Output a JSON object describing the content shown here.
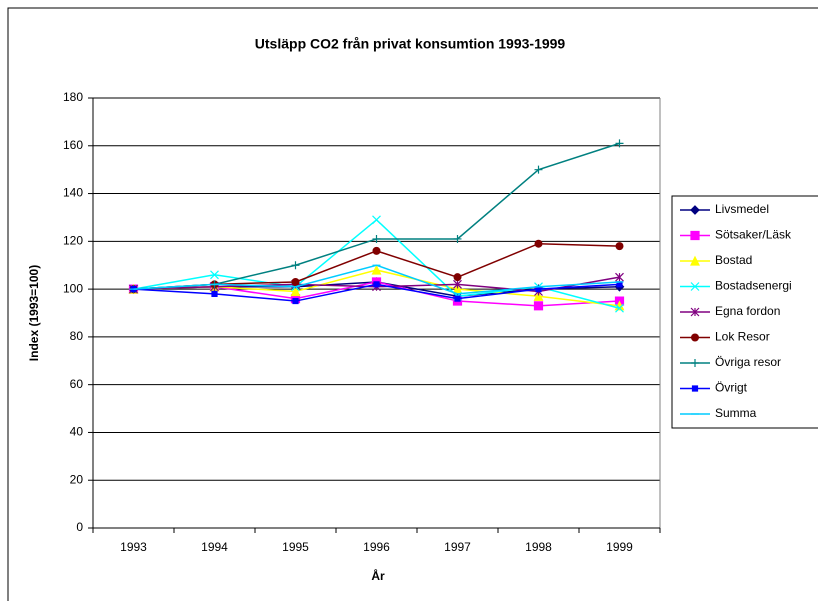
{
  "chart_data": {
    "type": "line",
    "title": "Utsläpp CO2 från privat konsumtion 1993-1999",
    "x_label": "År",
    "y_label": "Index (1993=100)",
    "categories": [
      "1993",
      "1994",
      "1995",
      "1996",
      "1997",
      "1998",
      "1999"
    ],
    "ylim": [
      0,
      180
    ],
    "yticks": [
      0,
      20,
      40,
      60,
      80,
      100,
      120,
      140,
      160,
      180
    ],
    "grid": true,
    "legend": "right",
    "series": [
      {
        "name": "Livsmedel",
        "color": "#000080",
        "marker": "diamond",
        "values": [
          100,
          101,
          101,
          103,
          97,
          100,
          101
        ]
      },
      {
        "name": "Sötsaker/Läsk",
        "color": "#ff00ff",
        "marker": "square",
        "values": [
          100,
          101,
          96,
          103,
          95,
          93,
          95
        ]
      },
      {
        "name": "Bostad",
        "color": "#ffff00",
        "marker": "triangle",
        "values": [
          100,
          101,
          99,
          108,
          100,
          97,
          93
        ]
      },
      {
        "name": "Bostadsenergi",
        "color": "#00ffff",
        "marker": "x",
        "values": [
          100,
          106,
          101,
          129,
          97,
          101,
          92
        ]
      },
      {
        "name": "Egna fordon",
        "color": "#800080",
        "marker": "star",
        "values": [
          100,
          101,
          102,
          101,
          102,
          99,
          105
        ]
      },
      {
        "name": "Lok Resor",
        "color": "#800000",
        "marker": "circle",
        "values": [
          100,
          102,
          103,
          116,
          105,
          119,
          118
        ]
      },
      {
        "name": "Övriga resor",
        "color": "#008080",
        "marker": "plus",
        "values": [
          100,
          102,
          110,
          121,
          121,
          150,
          161
        ]
      },
      {
        "name": "Övrigt",
        "color": "#0000ff",
        "marker": "smallsquare",
        "values": [
          100,
          98,
          95,
          102,
          96,
          100,
          102
        ]
      },
      {
        "name": "Summa",
        "color": "#00ccff",
        "marker": "dash",
        "values": [
          100,
          102,
          101,
          110,
          98,
          101,
          103
        ]
      }
    ]
  }
}
